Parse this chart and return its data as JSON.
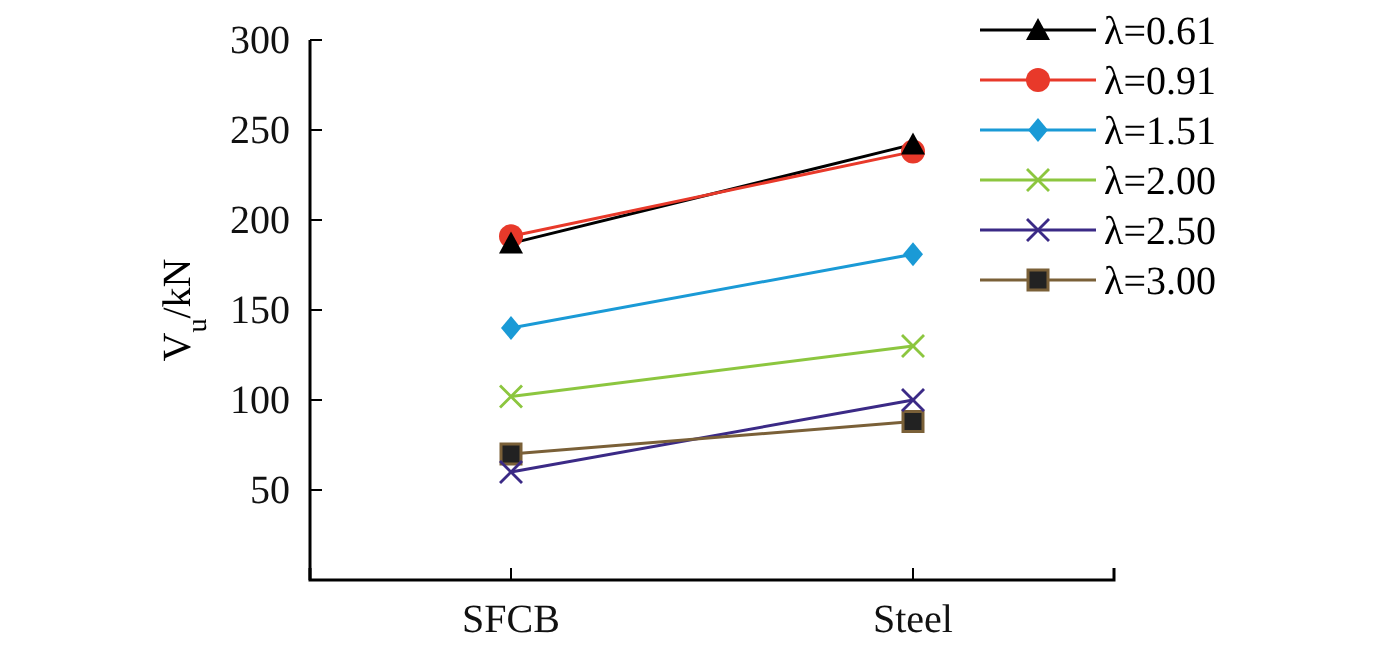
{
  "chart_data": {
    "type": "line",
    "ylabel": "V$_{u}$/kN",
    "categories": [
      "SFCB",
      "Steel"
    ],
    "ylim": [
      0,
      300
    ],
    "yticks": [
      50,
      100,
      150,
      200,
      250,
      300
    ],
    "grid": false,
    "legend": "top right",
    "series": [
      {
        "name": "λ=0.61",
        "color": "#000000",
        "marker": "triangle",
        "values": [
          187,
          242
        ]
      },
      {
        "name": "λ=0.91",
        "color": "#e8392a",
        "marker": "circle",
        "values": [
          191,
          238
        ]
      },
      {
        "name": "λ=1.51",
        "color": "#1a9ad6",
        "marker": "diamond",
        "values": [
          140,
          181
        ]
      },
      {
        "name": "λ=2.00",
        "color": "#8cc63f",
        "marker": "cross",
        "values": [
          102,
          130
        ]
      },
      {
        "name": "λ=2.50",
        "color": "#3b2a86",
        "marker": "cross",
        "values": [
          60,
          100
        ]
      },
      {
        "name": "λ=3.00",
        "color": "#7a6038",
        "marker": "square",
        "values": [
          70,
          88
        ]
      }
    ]
  }
}
